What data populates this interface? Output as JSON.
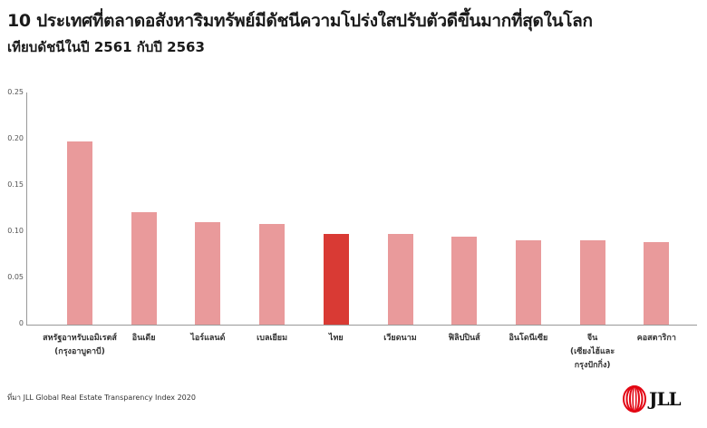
{
  "title": "10 ประเทศที่ตลาดอสังหาริมทรัพย์มีดัชนีความโปร่งใสปรับตัวดีขึ้นมากที่สุดในโลก",
  "subtitle": "เทียบดัชนีในปี 2561 กับปี 2563",
  "source": "ที่มา  JLL Global Real Estate Transparency Index 2020",
  "logo": {
    "text": "JLL",
    "icon": "jll-logo-icon",
    "color": "#e30613"
  },
  "colors": {
    "default_bar": "#e99a9b",
    "highlight_bar": "#d93a34"
  },
  "chart_data": {
    "type": "bar",
    "title": "10 ประเทศที่ตลาดอสังหาริมทรัพย์มีดัชนีความโปร่งใสปรับตัวดีขึ้นมากที่สุดในโลก",
    "subtitle": "เทียบดัชนีในปี 2561 กับปี 2563",
    "xlabel": "",
    "ylabel": "",
    "ylim": [
      0,
      0.25
    ],
    "yticks": [
      "0",
      "0.05",
      "0.10",
      "0.15",
      "0.20",
      "0.25"
    ],
    "grid": false,
    "legend": null,
    "highlight": "ไทย",
    "categories": [
      "สหรัฐอาหรับเอมิเรตส์ (กรุงอาบูดาบี)",
      "อินเดีย",
      "ไอร์แลนด์",
      "เบลเยียม",
      "ไทย",
      "เวียดนาม",
      "ฟิลิปปินส์",
      "อินโดนีเซีย",
      "จีน (เซียงไฮ้และกรุงปักกิ่ง)",
      "คอสตาริกา"
    ],
    "category_lines": [
      [
        "สหรัฐอาหรับเอมิเรตส์",
        "(กรุงอาบูดาบี)"
      ],
      [
        "อินเดีย"
      ],
      [
        "ไอร์แลนด์"
      ],
      [
        "เบลเยียม"
      ],
      [
        "ไทย"
      ],
      [
        "เวียดนาม"
      ],
      [
        "ฟิลิปปินส์"
      ],
      [
        "อินโดนีเซีย"
      ],
      [
        "จีน",
        "(เซียงไฮ้และ",
        "กรุงปักกิ่ง)"
      ],
      [
        "คอสตาริกา"
      ]
    ],
    "values": [
      0.198,
      0.122,
      0.111,
      0.109,
      0.098,
      0.098,
      0.095,
      0.091,
      0.091,
      0.089
    ]
  }
}
